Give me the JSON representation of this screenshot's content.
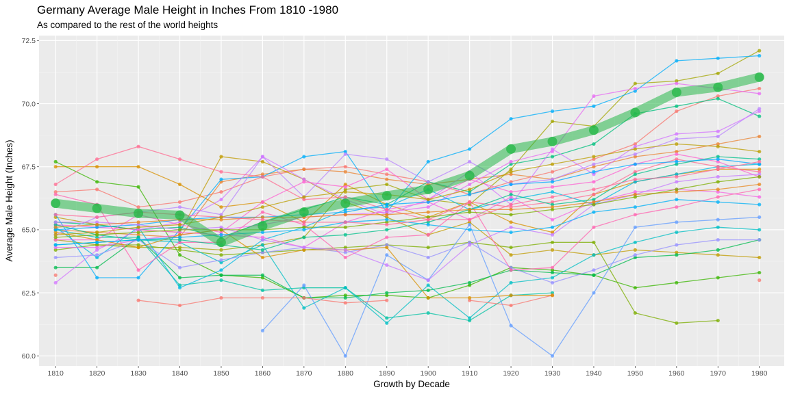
{
  "chart_data": {
    "type": "line",
    "title": "Germany Average Male Height in Inches From 1810 -1980",
    "subtitle": "As compared to the rest of the world heights",
    "xlabel": "Growth by Decade",
    "ylabel": "Average Male Height (Inches)",
    "x": [
      1810,
      1820,
      1830,
      1840,
      1850,
      1860,
      1870,
      1880,
      1890,
      1900,
      1910,
      1920,
      1930,
      1940,
      1950,
      1960,
      1970,
      1980
    ],
    "x_ticks": [
      "1810",
      "1820",
      "1830",
      "1840",
      "1850",
      "1860",
      "1870",
      "1880",
      "1890",
      "1900",
      "1910",
      "1920",
      "1930",
      "1940",
      "1950",
      "1960",
      "1970",
      "1980"
    ],
    "xlim": [
      1806,
      1986
    ],
    "y_ticks": [
      60.0,
      62.5,
      65.0,
      67.5,
      70.0,
      72.5
    ],
    "y_tick_labels": [
      "60.0",
      "62.5",
      "65.0",
      "67.5",
      "70.0",
      "72.5"
    ],
    "ylim": [
      59.6,
      72.7
    ],
    "grid": true,
    "highlight_color": "#28b84a",
    "highlight_series": {
      "values": [
        66.05,
        65.85,
        65.65,
        65.58,
        64.5,
        65.15,
        65.7,
        66.05,
        66.35,
        66.6,
        67.15,
        68.2,
        68.5,
        68.95,
        69.65,
        70.45,
        70.65,
        71.05
      ]
    },
    "series": [
      {
        "color": "#F8766D",
        "values": [
          66.5,
          66.6,
          65.9,
          66.1,
          66.5,
          67.1,
          67.4,
          67.5,
          67.2,
          66.9,
          66.4,
          66.9,
          67.3,
          67.8,
          68.4,
          69.7,
          70.3,
          70.6
        ]
      },
      {
        "color": "#EA8331",
        "values": [
          65.0,
          64.9,
          64.8,
          64.7,
          66.9,
          67.2,
          67.4,
          67.3,
          67.0,
          66.8,
          67.0,
          67.2,
          67.0,
          67.5,
          67.9,
          68.1,
          68.4,
          68.7
        ]
      },
      {
        "color": "#D89000",
        "values": [
          67.5,
          67.5,
          67.5,
          66.8,
          65.9,
          66.1,
          65.3,
          66.8,
          66.0,
          65.5,
          66.1,
          65.3,
          64.9,
          66.4,
          66.9,
          67.2,
          67.4,
          67.4
        ]
      },
      {
        "color": "#C09B00",
        "values": [
          65.5,
          65.2,
          65.0,
          64.9,
          67.9,
          67.7,
          67.0,
          66.1,
          65.5,
          64.8,
          65.3,
          64.0,
          64.2,
          64.0,
          64.2,
          64.1,
          64.0,
          63.9
        ]
      },
      {
        "color": "#A3A500",
        "values": [
          64.6,
          64.4,
          64.3,
          64.3,
          64.2,
          64.4,
          64.7,
          66.6,
          66.8,
          66.2,
          66.0,
          67.4,
          69.3,
          69.1,
          70.8,
          70.9,
          71.2,
          72.1
        ]
      },
      {
        "color": "#7CAE00",
        "values": [
          64.2,
          64.4,
          64.4,
          64.2,
          64.0,
          64.1,
          64.2,
          64.3,
          64.4,
          64.3,
          64.5,
          64.3,
          64.5,
          64.5,
          61.7,
          61.3,
          61.4,
          null
        ]
      },
      {
        "color": "#39B600",
        "values": [
          67.7,
          66.9,
          66.7,
          64.0,
          63.2,
          63.1,
          62.3,
          62.4,
          62.4,
          62.3,
          62.8,
          63.5,
          63.4,
          63.2,
          62.7,
          62.9,
          63.1,
          63.3
        ]
      },
      {
        "color": "#00BB4E",
        "values": [
          63.5,
          63.5,
          64.7,
          63.1,
          63.2,
          63.2,
          62.3,
          62.3,
          62.5,
          62.6,
          62.9,
          63.4,
          63.3,
          63.2,
          63.9,
          64.0,
          64.2,
          64.6
        ]
      },
      {
        "color": "#00BF7D",
        "values": [
          65.3,
          65.2,
          65.0,
          65.1,
          64.7,
          65.3,
          65.8,
          66.3,
          66.0,
          66.9,
          66.5,
          67.6,
          67.9,
          68.4,
          69.6,
          69.9,
          70.2,
          69.5
        ]
      },
      {
        "color": "#00C1A3",
        "values": [
          65.0,
          64.7,
          64.7,
          62.8,
          63.0,
          62.6,
          62.7,
          62.7,
          61.5,
          61.7,
          61.4,
          62.4,
          62.5,
          null,
          null,
          null,
          null,
          null
        ]
      },
      {
        "color": "#00BFC4",
        "values": [
          64.4,
          64.5,
          64.6,
          64.5,
          63.7,
          64.4,
          61.9,
          62.7,
          61.3,
          62.8,
          61.5,
          62.9,
          63.1,
          64.0,
          64.5,
          64.9,
          65.1,
          65.0
        ]
      },
      {
        "color": "#00B9E3",
        "values": [
          65.1,
          63.9,
          65.1,
          62.7,
          63.4,
          64.6,
          65.1,
          65.8,
          65.9,
          66.6,
          65.8,
          66.2,
          66.5,
          66.0,
          66.9,
          67.2,
          67.5,
          67.6
        ]
      },
      {
        "color": "#00ADFA",
        "values": [
          65.6,
          63.1,
          63.1,
          65.0,
          67.0,
          67.1,
          67.9,
          68.1,
          65.7,
          67.7,
          68.2,
          69.4,
          69.7,
          69.9,
          70.5,
          71.7,
          71.8,
          71.9
        ]
      },
      {
        "color": "#619CFF",
        "values": [
          null,
          null,
          null,
          null,
          null,
          61.0,
          62.8,
          60.0,
          64.0,
          63.0,
          65.2,
          61.2,
          60.0,
          62.5,
          65.1,
          65.3,
          65.4,
          65.5
        ]
      },
      {
        "color": "#9590FF",
        "values": [
          63.9,
          64.0,
          64.6,
          63.5,
          63.8,
          64.1,
          64.3,
          64.1,
          64.4,
          63.9,
          64.5,
          63.5,
          62.9,
          63.4,
          64.0,
          64.4,
          64.6,
          64.6
        ]
      },
      {
        "color": "#B983FF",
        "values": [
          64.8,
          65.5,
          65.7,
          65.9,
          65.6,
          67.9,
          66.3,
          68.0,
          67.8,
          66.9,
          67.7,
          66.8,
          67.0,
          67.6,
          68.0,
          68.6,
          68.7,
          69.8
        ]
      },
      {
        "color": "#D376FF",
        "values": [
          62.9,
          64.2,
          65.0,
          65.3,
          66.2,
          67.9,
          67.0,
          66.2,
          65.6,
          66.2,
          67.3,
          66.0,
          68.2,
          67.2,
          68.3,
          68.8,
          68.9,
          69.7
        ]
      },
      {
        "color": "#E76BF3",
        "values": [
          64.3,
          64.3,
          64.6,
          64.8,
          65.0,
          65.2,
          65.5,
          65.6,
          65.7,
          65.9,
          66.8,
          67.7,
          68.1,
          70.3,
          70.6,
          70.8,
          70.6,
          70.4
        ]
      },
      {
        "color": "#F564E3",
        "values": [
          65.2,
          65.1,
          65.0,
          64.9,
          64.8,
          64.7,
          64.3,
          65.3,
          65.8,
          66.1,
          65.4,
          66.3,
          65.4,
          66.1,
          66.5,
          66.6,
          66.5,
          66.3
        ]
      },
      {
        "color": "#FD61D1",
        "values": [
          64.6,
          64.6,
          65.6,
          65.2,
          64.9,
          66.1,
          66.9,
          66.7,
          67.4,
          66.2,
          67.0,
          66.5,
          66.7,
          66.9,
          67.6,
          68.0,
          67.7,
          67.1
        ]
      },
      {
        "color": "#FF64B0",
        "values": [
          66.4,
          66.0,
          63.4,
          64.5,
          64.5,
          65.7,
          65.2,
          63.9,
          64.7,
          64.8,
          66.1,
          63.4,
          63.5,
          65.1,
          65.6,
          65.9,
          66.3,
          66.6
        ]
      },
      {
        "color": "#FF6C91",
        "values": [
          66.8,
          67.8,
          68.3,
          67.8,
          67.3,
          67.1,
          66.2,
          66.3,
          65.8,
          65.4,
          66.1,
          65.9,
          66.1,
          66.4,
          67.3,
          67.8,
          67.5,
          67.3
        ]
      },
      {
        "color": "#F8766D",
        "values": [
          63.2,
          null,
          62.2,
          62.0,
          62.3,
          62.3,
          62.3,
          62.1,
          62.2,
          null,
          62.2,
          62.0,
          62.4,
          null,
          null,
          null,
          null,
          63.0
        ]
      },
      {
        "color": "#D89000",
        "values": [
          64.9,
          64.6,
          64.3,
          64.8,
          65.0,
          63.9,
          64.2,
          64.2,
          64.3,
          62.3,
          62.3,
          62.4,
          62.4,
          null,
          null,
          null,
          null,
          null
        ]
      },
      {
        "color": "#00C08B",
        "values": [
          65.2,
          64.8,
          64.6,
          64.6,
          64.4,
          64.2,
          64.7,
          64.8,
          65.0,
          65.3,
          65.8,
          66.4,
          66.0,
          66.2,
          67.2,
          67.6,
          67.9,
          67.8
        ]
      },
      {
        "color": "#00A9FF",
        "values": [
          65.0,
          65.1,
          65.2,
          65.4,
          65.5,
          65.5,
          65.6,
          65.7,
          66.0,
          66.1,
          66.4,
          66.8,
          66.9,
          67.3,
          67.6,
          67.7,
          67.8,
          67.6
        ]
      },
      {
        "color": "#C77CFF",
        "values": [
          65.3,
          65.3,
          65.2,
          65.0,
          65.1,
          64.6,
          64.3,
          64.2,
          63.6,
          63.0,
          64.4,
          65.1,
          64.8,
          66.0,
          66.4,
          66.9,
          67.1,
          67.2
        ]
      },
      {
        "color": "#E7861B",
        "values": [
          65.1,
          65.2,
          65.3,
          65.4,
          65.4,
          65.5,
          65.5,
          65.6,
          65.6,
          65.7,
          65.8,
          65.8,
          65.9,
          66.1,
          66.4,
          66.5,
          66.6,
          66.8
        ]
      },
      {
        "color": "#7CAE00",
        "values": [
          64.7,
          64.8,
          64.9,
          65.0,
          65.0,
          65.0,
          65.1,
          65.1,
          65.3,
          65.5,
          65.7,
          65.6,
          65.8,
          66.0,
          66.3,
          66.6,
          66.9,
          67.1
        ]
      },
      {
        "color": "#00B0F6",
        "values": [
          64.4,
          64.5,
          64.6,
          64.7,
          64.8,
          64.9,
          65.0,
          65.3,
          65.4,
          65.2,
          65.0,
          64.9,
          65.1,
          65.7,
          65.9,
          66.2,
          66.1,
          66.0
        ]
      },
      {
        "color": "#FF6A98",
        "values": [
          65.6,
          65.5,
          65.7,
          65.6,
          65.5,
          65.4,
          65.3,
          65.3,
          65.2,
          65.4,
          65.4,
          66.0,
          66.3,
          66.6,
          67.0,
          67.1,
          67.4,
          67.7
        ]
      },
      {
        "color": "#BB9D00",
        "values": [
          64.8,
          64.9,
          65.1,
          65.2,
          65.5,
          65.9,
          66.3,
          66.5,
          66.4,
          66.2,
          66.6,
          67.3,
          67.6,
          67.9,
          68.2,
          68.4,
          68.3,
          68.1
        ]
      }
    ]
  }
}
